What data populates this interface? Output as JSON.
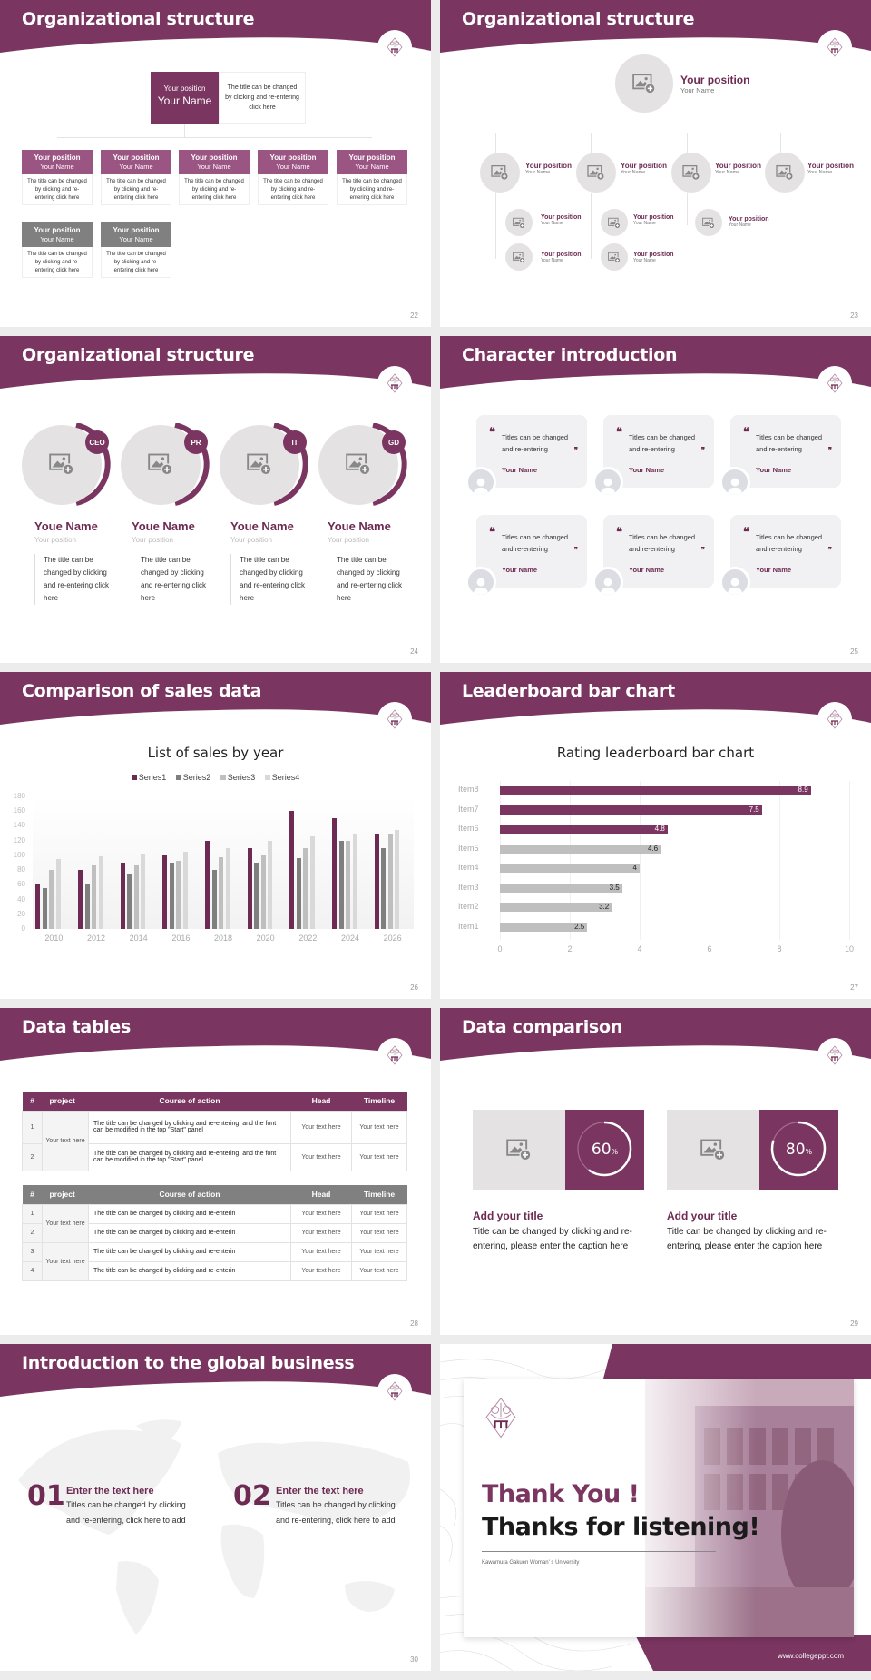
{
  "theme": {
    "primary": "#7a3560",
    "primary_light": "#9b5582",
    "gray": "#808080",
    "light_gray": "#e4e2e3"
  },
  "slides": {
    "s22": {
      "title": "Organizational structure",
      "page": "22",
      "top": {
        "position": "Your position",
        "name": "Your Name",
        "desc": "The title can be changed by clicking and re-entering click here"
      },
      "boxes": [
        {
          "position": "Your position",
          "name": "Your Name",
          "desc": "The title can be changed by clicking and re-entering click here"
        },
        {
          "position": "Your position",
          "name": "Your Name",
          "desc": "The title can be changed by clicking and re-entering click here"
        },
        {
          "position": "Your position",
          "name": "Your Name",
          "desc": "The title can be changed by clicking and re-entering click here"
        },
        {
          "position": "Your position",
          "name": "Your Name",
          "desc": "The title can be changed by clicking and re-entering click here"
        },
        {
          "position": "Your position",
          "name": "Your Name",
          "desc": "The title can be changed by clicking and re-entering click here"
        },
        {
          "position": "Your position",
          "name": "Your Name",
          "desc": "The title can be changed by clicking and re-entering click here"
        },
        {
          "position": "Your position",
          "name": "Your Name",
          "desc": "The title can be changed by clicking and re-entering click here"
        }
      ]
    },
    "s23": {
      "title": "Organizational structure",
      "page": "23",
      "top": {
        "position": "Your position",
        "name": "Your Name"
      },
      "level2": [
        {
          "position": "Your position",
          "name": "Your Name"
        },
        {
          "position": "Your position",
          "name": "Your Name"
        },
        {
          "position": "Your position",
          "name": "Your Name"
        },
        {
          "position": "Your position",
          "name": "Your Name"
        }
      ],
      "level3": [
        {
          "position": "Your position",
          "name": "Your Name"
        },
        {
          "position": "Your position",
          "name": "Your Name"
        },
        {
          "position": "Your position",
          "name": "Your Name"
        },
        {
          "position": "Your position",
          "name": "Your Name"
        },
        {
          "position": "Your position",
          "name": "Your Name"
        }
      ]
    },
    "s24": {
      "title": "Organizational structure",
      "page": "24",
      "people": [
        {
          "badge": "CEO",
          "name": "Youe Name",
          "position": "Your position",
          "desc": "The title can be changed by clicking and re-entering click here"
        },
        {
          "badge": "PR",
          "name": "Youe Name",
          "position": "Your position",
          "desc": "The title can be changed by clicking and re-entering click here"
        },
        {
          "badge": "IT",
          "name": "Youe Name",
          "position": "Your position",
          "desc": "The title can be changed by clicking and re-entering click here"
        },
        {
          "badge": "GD",
          "name": "Youe Name",
          "position": "Your position",
          "desc": "The title can be changed by clicking and re-entering click here"
        }
      ]
    },
    "s25": {
      "title": "Character introduction",
      "page": "25",
      "quotes": [
        {
          "text": "Titles can be changed and re-entering",
          "name": "Your Name"
        },
        {
          "text": "Titles can be changed and re-entering",
          "name": "Your Name"
        },
        {
          "text": "Titles can be changed and re-entering",
          "name": "Your Name"
        },
        {
          "text": "Titles can be changed and re-entering",
          "name": "Your Name"
        },
        {
          "text": "Titles can be changed and re-entering",
          "name": "Your Name"
        },
        {
          "text": "Titles can be changed and re-entering",
          "name": "Your Name"
        }
      ],
      "open_quote": "❝",
      "close_quote": "❞"
    },
    "s26": {
      "title": "Comparison of sales data",
      "page": "26"
    },
    "s27": {
      "title": "Leaderboard bar chart",
      "page": "27"
    },
    "s28": {
      "title": "Data tables",
      "page": "28",
      "headers": [
        "#",
        "project",
        "Course of action",
        "Head",
        "Timeline"
      ],
      "table1": {
        "rows": [
          {
            "num": "1",
            "project": "Your text here",
            "action": "The title can be changed by clicking and re-entering, and the font can be modified in the top \"Start\" panel",
            "head": "Your text here",
            "timeline": "Your text here"
          },
          {
            "num": "2",
            "project": "",
            "action": "The title can be changed by clicking and re-entering, and the font can be modified in the top \"Start\" panel",
            "head": "Your text here",
            "timeline": "Your text here"
          }
        ]
      },
      "table2": {
        "rows": [
          {
            "num": "1",
            "project": "Your text here",
            "action": "The title can be changed by clicking and re-enterin",
            "head": "Your text here",
            "timeline": "Your text here"
          },
          {
            "num": "2",
            "project": "",
            "action": "The title can be changed by clicking and re-enterin",
            "head": "Your text here",
            "timeline": "Your text here"
          },
          {
            "num": "3",
            "project": "Your text here",
            "action": "The title can be changed by clicking and re-enterin",
            "head": "Your text here",
            "timeline": "Your text here"
          },
          {
            "num": "4",
            "project": "",
            "action": "The title can be changed by clicking and re-enterin",
            "head": "Your text here",
            "timeline": "Your text here"
          }
        ]
      }
    },
    "s29": {
      "title": "Data comparison",
      "page": "29",
      "items": [
        {
          "percent": "60",
          "unit": "%",
          "title": "Add your title",
          "desc": "Title can be changed by clicking and re-entering, please enter the caption here"
        },
        {
          "percent": "80",
          "unit": "%",
          "title": "Add your title",
          "desc": "Title can be changed by clicking and re-entering, please enter the caption here"
        }
      ]
    },
    "s30": {
      "title": "Introduction to the global business",
      "page": "30",
      "items": [
        {
          "num": "01",
          "title": "Enter the text here",
          "desc": "Titles can be changed by clicking and re-entering, click here to add"
        },
        {
          "num": "02",
          "title": "Enter the text here",
          "desc": "Titles can be changed by clicking and re-entering, click here to add"
        }
      ]
    },
    "s31": {
      "line1": "Thank You !",
      "line2": "Thanks for listening!",
      "university": "Kawamura Gakuen Woman' s University",
      "website": "www.collegeppt.com"
    }
  },
  "chart_data": [
    {
      "type": "bar",
      "title": "List of sales by year",
      "categories": [
        "2010",
        "2012",
        "2014",
        "2016",
        "2018",
        "2020",
        "2022",
        "2024",
        "2026"
      ],
      "series": [
        {
          "name": "Series1",
          "color": "#6d2a52",
          "values": [
            60,
            80,
            90,
            100,
            120,
            110,
            160,
            150,
            130
          ]
        },
        {
          "name": "Series2",
          "color": "#7f7f7f",
          "values": [
            55,
            60,
            75,
            90,
            80,
            90,
            96,
            120,
            110
          ]
        },
        {
          "name": "Series3",
          "color": "#bfbfbf",
          "values": [
            80,
            86,
            88,
            92,
            98,
            100,
            110,
            120,
            130
          ]
        },
        {
          "name": "Series4",
          "color": "#d9d9d9",
          "values": [
            95,
            99,
            102,
            105,
            110,
            120,
            126,
            130,
            135
          ]
        }
      ],
      "yticks": [
        "0",
        "20",
        "40",
        "60",
        "80",
        "100",
        "120",
        "140",
        "160",
        "180"
      ],
      "ylim": [
        0,
        180
      ],
      "legend_position": "top",
      "grid": true,
      "xlabel": "",
      "ylabel": ""
    },
    {
      "type": "bar",
      "orientation": "horizontal",
      "title": "Rating leaderboard bar chart",
      "categories": [
        "Item8",
        "Item7",
        "Item6",
        "Item5",
        "Item4",
        "Item3",
        "Item2",
        "Item1"
      ],
      "values": [
        8.9,
        7.5,
        4.8,
        4.6,
        4,
        3.5,
        3.2,
        2.5
      ],
      "labels": [
        "8.9",
        "7.5",
        "4.8",
        "4.6",
        "4",
        "3.5",
        "3.2",
        "2.5"
      ],
      "highlight_count": 3,
      "xticks": [
        "0",
        "2",
        "4",
        "6",
        "8",
        "10"
      ],
      "xlim": [
        0,
        10
      ],
      "grid": true,
      "xlabel": "",
      "ylabel": ""
    }
  ]
}
